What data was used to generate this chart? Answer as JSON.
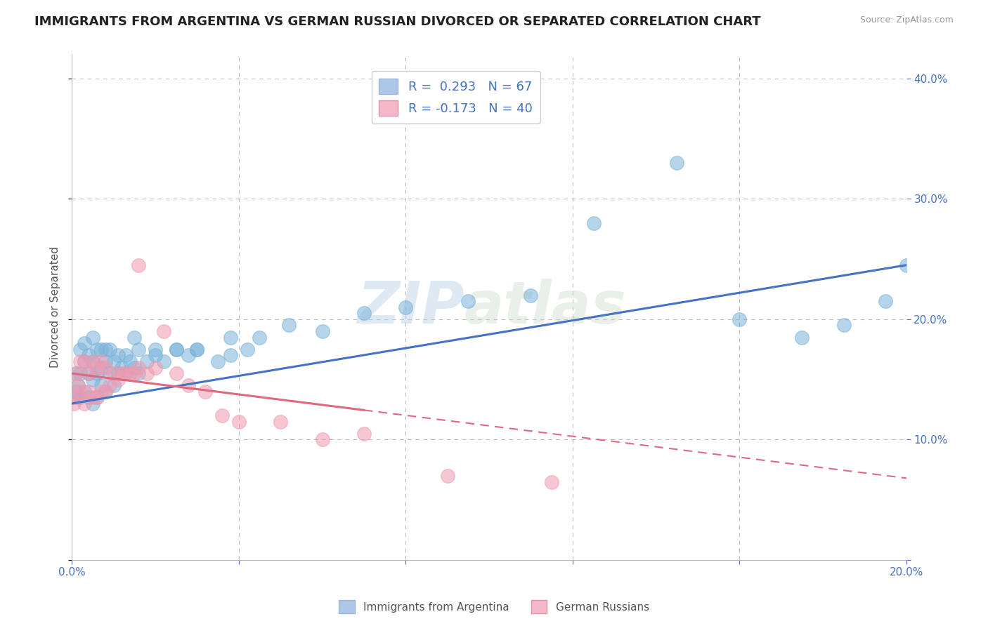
{
  "title": "IMMIGRANTS FROM ARGENTINA VS GERMAN RUSSIAN DIVORCED OR SEPARATED CORRELATION CHART",
  "source": "Source: ZipAtlas.com",
  "ylabel": "Divorced or Separated",
  "watermark_zip": "ZIP",
  "watermark_atlas": "atlas",
  "legend_entries": [
    {
      "label": "R =  0.293   N = 67",
      "color": "#aec6e8"
    },
    {
      "label": "R = -0.173   N = 40",
      "color": "#f4b8c8"
    }
  ],
  "legend_labels_bottom": [
    "Immigrants from Argentina",
    "German Russians"
  ],
  "series1_color": "#7ab3d9",
  "series2_color": "#f09ab0",
  "trend1_color": "#4472c4",
  "trend2_color": "#e06880",
  "xlim": [
    0.0,
    0.2
  ],
  "ylim": [
    0.0,
    0.42
  ],
  "xticks": [
    0.0,
    0.04,
    0.08,
    0.12,
    0.16,
    0.2
  ],
  "yticks": [
    0.0,
    0.1,
    0.2,
    0.3,
    0.4
  ],
  "background_color": "#ffffff",
  "title_fontsize": 13,
  "axis_label_fontsize": 11,
  "tick_fontsize": 11,
  "series1_x": [
    0.0005,
    0.001,
    0.001,
    0.0015,
    0.002,
    0.002,
    0.002,
    0.003,
    0.003,
    0.003,
    0.004,
    0.004,
    0.004,
    0.005,
    0.005,
    0.005,
    0.005,
    0.006,
    0.006,
    0.006,
    0.007,
    0.007,
    0.007,
    0.008,
    0.008,
    0.008,
    0.009,
    0.009,
    0.01,
    0.01,
    0.011,
    0.011,
    0.012,
    0.013,
    0.013,
    0.014,
    0.015,
    0.016,
    0.016,
    0.018,
    0.02,
    0.022,
    0.025,
    0.028,
    0.03,
    0.035,
    0.038,
    0.042,
    0.015,
    0.02,
    0.025,
    0.03,
    0.038,
    0.045,
    0.052,
    0.06,
    0.07,
    0.08,
    0.095,
    0.11,
    0.125,
    0.145,
    0.16,
    0.175,
    0.185,
    0.195,
    0.2
  ],
  "series1_y": [
    0.135,
    0.14,
    0.155,
    0.145,
    0.135,
    0.155,
    0.175,
    0.14,
    0.165,
    0.18,
    0.135,
    0.155,
    0.17,
    0.13,
    0.15,
    0.165,
    0.185,
    0.135,
    0.155,
    0.175,
    0.145,
    0.16,
    0.175,
    0.14,
    0.165,
    0.175,
    0.155,
    0.175,
    0.145,
    0.165,
    0.155,
    0.17,
    0.16,
    0.155,
    0.17,
    0.165,
    0.16,
    0.155,
    0.175,
    0.165,
    0.17,
    0.165,
    0.175,
    0.17,
    0.175,
    0.165,
    0.17,
    0.175,
    0.185,
    0.175,
    0.175,
    0.175,
    0.185,
    0.185,
    0.195,
    0.19,
    0.205,
    0.21,
    0.215,
    0.22,
    0.28,
    0.33,
    0.2,
    0.185,
    0.195,
    0.215,
    0.245
  ],
  "series2_x": [
    0.0005,
    0.001,
    0.001,
    0.0015,
    0.002,
    0.002,
    0.003,
    0.003,
    0.004,
    0.004,
    0.005,
    0.005,
    0.006,
    0.006,
    0.007,
    0.007,
    0.008,
    0.008,
    0.009,
    0.01,
    0.011,
    0.012,
    0.013,
    0.014,
    0.015,
    0.016,
    0.016,
    0.018,
    0.02,
    0.022,
    0.025,
    0.028,
    0.032,
    0.036,
    0.04,
    0.05,
    0.06,
    0.07,
    0.09,
    0.115
  ],
  "series2_y": [
    0.13,
    0.135,
    0.155,
    0.145,
    0.14,
    0.165,
    0.13,
    0.165,
    0.14,
    0.155,
    0.135,
    0.165,
    0.135,
    0.16,
    0.14,
    0.165,
    0.14,
    0.16,
    0.145,
    0.155,
    0.15,
    0.155,
    0.155,
    0.155,
    0.155,
    0.245,
    0.16,
    0.155,
    0.16,
    0.19,
    0.155,
    0.145,
    0.14,
    0.12,
    0.115,
    0.115,
    0.1,
    0.105,
    0.07,
    0.065
  ],
  "trend1_x0": 0.0,
  "trend1_x1": 0.2,
  "trend1_y0": 0.13,
  "trend1_y1": 0.245,
  "trend2_x0": 0.0,
  "trend2_x1_solid": 0.07,
  "trend2_x1": 0.2,
  "trend2_y0": 0.155,
  "trend2_y1": 0.068
}
